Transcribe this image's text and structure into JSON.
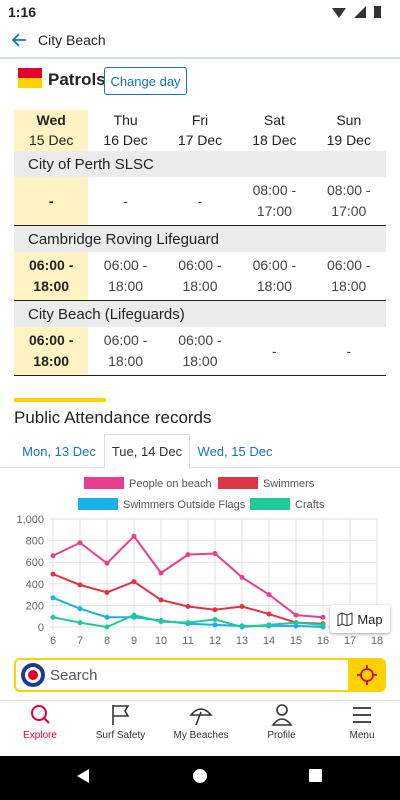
{
  "status_bar": {
    "time": "1:16"
  },
  "header": {
    "title": "City Beach"
  },
  "patrols": {
    "title": "Patrols",
    "button": "Change day",
    "selected_day": 0,
    "days": [
      {
        "day": "Wed",
        "date": "15 Dec"
      },
      {
        "day": "Thu",
        "date": "16 Dec"
      },
      {
        "day": "Fri",
        "date": "17 Dec"
      },
      {
        "day": "Sat",
        "date": "18 Dec"
      },
      {
        "day": "Sun",
        "date": "19 Dec"
      }
    ],
    "groups": [
      {
        "name": "City of Perth SLSC",
        "times": [
          "-",
          "-",
          "-",
          "08:00 - 17:00",
          "08:00 - 17:00"
        ]
      },
      {
        "name": "Cambridge Roving Lifeguard",
        "times": [
          "06:00 - 18:00",
          "06:00 - 18:00",
          "06:00 - 18:00",
          "06:00 - 18:00",
          "06:00 - 18:00"
        ]
      },
      {
        "name": "City Beach (Lifeguards)",
        "times": [
          "06:00 - 18:00",
          "06:00 - 18:00",
          "06:00 - 18:00",
          "-",
          "-"
        ]
      }
    ]
  },
  "attendance": {
    "title": "Public Attendance records",
    "tabs": [
      "Mon, 13 Dec",
      "Tue, 14 Dec",
      "Wed, 15 Dec"
    ],
    "active_tab": 1,
    "map_button": "Map"
  },
  "chart_data": {
    "type": "line",
    "x": [
      6,
      7,
      8,
      9,
      10,
      11,
      12,
      13,
      14,
      15,
      16,
      17,
      18
    ],
    "xlim": [
      6,
      18
    ],
    "xticks": [
      6,
      7,
      8,
      9,
      10,
      11,
      12,
      13,
      14,
      15,
      16,
      17,
      18
    ],
    "ylim": [
      0,
      1000
    ],
    "yticks": [
      0,
      200,
      400,
      600,
      800,
      {
        "value": 1000,
        "label": "1,000"
      }
    ],
    "grid": true,
    "series": [
      {
        "name": "People on beach",
        "color": "#e83e8c",
        "values": [
          660,
          780,
          590,
          840,
          500,
          670,
          680,
          460,
          300,
          110,
          90,
          null,
          null
        ]
      },
      {
        "name": "Swimmers",
        "color": "#dc3545",
        "values": [
          490,
          390,
          320,
          420,
          250,
          190,
          160,
          190,
          120,
          40,
          30,
          null,
          null
        ]
      },
      {
        "name": "Swimmers Outside Flags",
        "color": "#1ab0e8",
        "values": [
          270,
          170,
          90,
          90,
          60,
          30,
          20,
          10,
          10,
          10,
          0,
          null,
          null
        ]
      },
      {
        "name": "Crafts",
        "color": "#20c997",
        "values": [
          90,
          40,
          0,
          110,
          50,
          40,
          70,
          0,
          20,
          40,
          20,
          null,
          null
        ]
      }
    ]
  },
  "search": {
    "placeholder": "Search"
  },
  "nav": {
    "items": [
      "Explore",
      "Surf Safety",
      "My Beaches",
      "Profile",
      "Menu"
    ],
    "active": 0
  }
}
